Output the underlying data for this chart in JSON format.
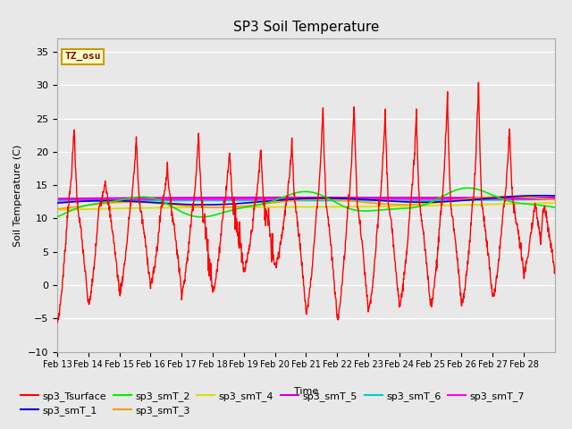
{
  "title": "SP3 Soil Temperature",
  "xlabel": "Time",
  "ylabel": "Soil Temperature (C)",
  "ylim": [
    -10,
    37
  ],
  "yticks": [
    -10,
    -5,
    0,
    5,
    10,
    15,
    20,
    25,
    30,
    35
  ],
  "xtick_labels": [
    "Feb 13",
    "Feb 14",
    "Feb 15",
    "Feb 16",
    "Feb 17",
    "Feb 18",
    "Feb 19",
    "Feb 20",
    "Feb 21",
    "Feb 22",
    "Feb 23",
    "Feb 24",
    "Feb 25",
    "Feb 26",
    "Feb 27",
    "Feb 28"
  ],
  "annotation_text": "TZ_osu",
  "annotation_bg": "#ffffcc",
  "annotation_border": "#cc9900",
  "bg_color": "#e8e8e8",
  "legend_colors": {
    "sp3_Tsurface": "#ff0000",
    "sp3_smT_1": "#0000cc",
    "sp3_smT_2": "#00ee00",
    "sp3_smT_3": "#ff9900",
    "sp3_smT_4": "#dddd00",
    "sp3_smT_5": "#cc00cc",
    "sp3_smT_6": "#00cccc",
    "sp3_smT_7": "#ff00ff"
  },
  "legend_order": [
    "sp3_Tsurface",
    "sp3_smT_1",
    "sp3_smT_2",
    "sp3_smT_3",
    "sp3_smT_4",
    "sp3_smT_5",
    "sp3_smT_6",
    "sp3_smT_7"
  ]
}
